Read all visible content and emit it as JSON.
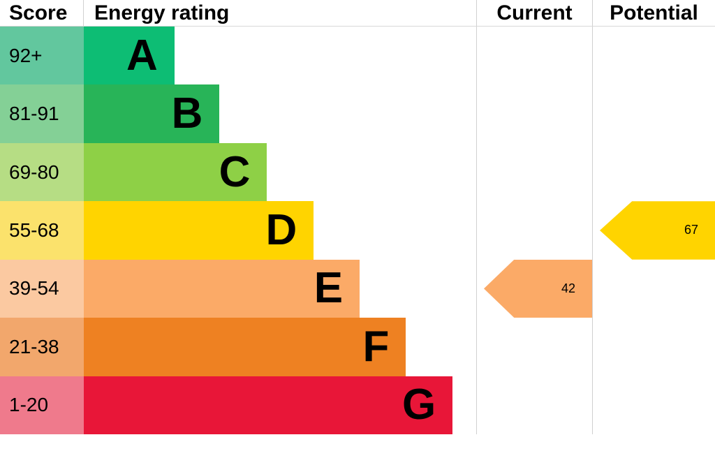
{
  "header": {
    "score": "Score",
    "energy_rating": "Energy rating",
    "current": "Current",
    "potential": "Potential"
  },
  "bands": [
    {
      "range": "92+",
      "letter": "A",
      "bar_color": "#0dbd74",
      "score_color": "#62c79e",
      "width_pct": 23.1
    },
    {
      "range": "81-91",
      "letter": "B",
      "bar_color": "#28b458",
      "score_color": "#84d096",
      "width_pct": 34.6
    },
    {
      "range": "69-80",
      "letter": "C",
      "bar_color": "#8ed046",
      "score_color": "#b6dd84",
      "width_pct": 46.7
    },
    {
      "range": "55-68",
      "letter": "D",
      "bar_color": "#ffd400",
      "score_color": "#fbe26c",
      "width_pct": 58.6
    },
    {
      "range": "39-54",
      "letter": "E",
      "bar_color": "#fbaa67",
      "score_color": "#fbc9a1",
      "width_pct": 70.3
    },
    {
      "range": "21-38",
      "letter": "F",
      "bar_color": "#ee8122",
      "score_color": "#f2a76c",
      "width_pct": 82.1
    },
    {
      "range": "1-20",
      "letter": "G",
      "bar_color": "#e81638",
      "score_color": "#ef7a8c",
      "width_pct": 94.0
    }
  ],
  "current": {
    "label": "42",
    "band": "E",
    "color": "#fbaa67"
  },
  "potential": {
    "label": "67",
    "band": "D",
    "color": "#ffd400"
  },
  "chart_data": {
    "type": "bar",
    "title": "Energy rating",
    "categories": [
      "A",
      "B",
      "C",
      "D",
      "E",
      "F",
      "G"
    ],
    "score_ranges": [
      "92+",
      "81-91",
      "69-80",
      "55-68",
      "39-54",
      "21-38",
      "1-20"
    ],
    "columns": [
      "Score",
      "Energy rating",
      "Current",
      "Potential"
    ],
    "current": {
      "value": 42,
      "band": "E"
    },
    "potential": {
      "value": 67,
      "band": "D"
    },
    "legend_position": "none",
    "grid": false
  }
}
